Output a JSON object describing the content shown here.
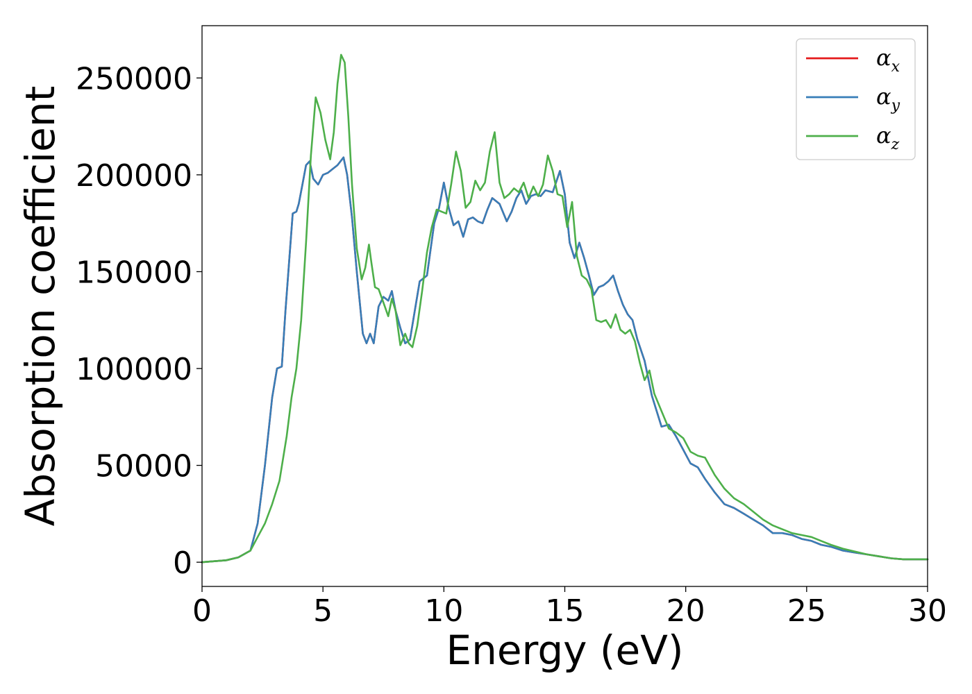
{
  "chart_data": {
    "type": "line",
    "title": "",
    "xlabel": "Energy (eV)",
    "ylabel": "Absorption coefficient",
    "xlim": [
      0,
      30
    ],
    "ylim": [
      -12500,
      277000
    ],
    "xticks": [
      0,
      5,
      10,
      15,
      20,
      25,
      30
    ],
    "xtick_labels": [
      "0",
      "5",
      "10",
      "15",
      "20",
      "25",
      "30"
    ],
    "yticks": [
      0,
      50000,
      100000,
      150000,
      200000,
      250000
    ],
    "ytick_labels": [
      "0",
      "50000",
      "100000",
      "150000",
      "200000",
      "250000"
    ],
    "grid": false,
    "legend_position": "top-right",
    "series": [
      {
        "name": "α_x",
        "symbol": "α",
        "subscript": "x",
        "color": "#e41a1c",
        "x": [
          0,
          1,
          1.5,
          2,
          2.3,
          2.6,
          2.9,
          3.1,
          3.3,
          3.45,
          3.6,
          3.75,
          3.9,
          4.0,
          4.15,
          4.3,
          4.45,
          4.6,
          4.8,
          5.0,
          5.2,
          5.4,
          5.6,
          5.85,
          6.0,
          6.2,
          6.4,
          6.65,
          6.8,
          6.95,
          7.1,
          7.3,
          7.5,
          7.7,
          7.85,
          8.0,
          8.2,
          8.4,
          8.6,
          8.8,
          9.0,
          9.3,
          9.6,
          9.8,
          10.0,
          10.2,
          10.4,
          10.6,
          10.8,
          11.0,
          11.2,
          11.4,
          11.6,
          11.8,
          12.0,
          12.3,
          12.6,
          12.8,
          13.0,
          13.2,
          13.4,
          13.6,
          13.8,
          14.0,
          14.2,
          14.5,
          14.8,
          15.0,
          15.2,
          15.4,
          15.6,
          15.8,
          16.0,
          16.2,
          16.4,
          16.6,
          16.8,
          17.0,
          17.2,
          17.4,
          17.6,
          17.8,
          18.0,
          18.3,
          18.6,
          19.0,
          19.3,
          19.6,
          19.9,
          20.2,
          20.5,
          20.8,
          21.2,
          21.6,
          22.0,
          22.4,
          22.8,
          23.2,
          23.6,
          24.0,
          24.4,
          24.8,
          25.2,
          25.6,
          26.0,
          26.5,
          27.0,
          27.5,
          28.0,
          28.5,
          29.0,
          29.5,
          30.0
        ],
        "y": [
          0,
          1000,
          2500,
          6000,
          20000,
          50000,
          85000,
          100000,
          101000,
          130000,
          155000,
          180000,
          181000,
          185000,
          195000,
          205000,
          207000,
          198000,
          195000,
          200000,
          201000,
          203000,
          205000,
          209000,
          200000,
          178000,
          150000,
          118000,
          113000,
          118000,
          113000,
          132000,
          137000,
          135000,
          140000,
          130000,
          121000,
          113000,
          115000,
          130000,
          145000,
          148000,
          175000,
          183000,
          196000,
          183000,
          174000,
          176000,
          168000,
          177000,
          178000,
          176000,
          175000,
          182000,
          188000,
          185000,
          176000,
          181000,
          188000,
          192000,
          185000,
          189000,
          190000,
          189000,
          192000,
          191000,
          202000,
          190000,
          165000,
          157000,
          165000,
          157000,
          148000,
          138000,
          142000,
          143000,
          145000,
          148000,
          140000,
          133000,
          128000,
          125000,
          115000,
          104000,
          86000,
          70000,
          71000,
          65000,
          58000,
          51000,
          49000,
          43000,
          36000,
          30000,
          28000,
          25000,
          22000,
          19000,
          15000,
          15000,
          14000,
          12000,
          11000,
          9000,
          8000,
          6000,
          5000,
          4000,
          3000,
          2000,
          1500,
          1500,
          1500
        ]
      },
      {
        "name": "α_y",
        "symbol": "α",
        "subscript": "y",
        "color": "#377eb8",
        "x": [
          0,
          1,
          1.5,
          2,
          2.3,
          2.6,
          2.9,
          3.1,
          3.3,
          3.45,
          3.6,
          3.75,
          3.9,
          4.0,
          4.15,
          4.3,
          4.45,
          4.6,
          4.8,
          5.0,
          5.2,
          5.4,
          5.6,
          5.85,
          6.0,
          6.2,
          6.4,
          6.65,
          6.8,
          6.95,
          7.1,
          7.3,
          7.5,
          7.7,
          7.85,
          8.0,
          8.2,
          8.4,
          8.6,
          8.8,
          9.0,
          9.3,
          9.6,
          9.8,
          10.0,
          10.2,
          10.4,
          10.6,
          10.8,
          11.0,
          11.2,
          11.4,
          11.6,
          11.8,
          12.0,
          12.3,
          12.6,
          12.8,
          13.0,
          13.2,
          13.4,
          13.6,
          13.8,
          14.0,
          14.2,
          14.5,
          14.8,
          15.0,
          15.2,
          15.4,
          15.6,
          15.8,
          16.0,
          16.2,
          16.4,
          16.6,
          16.8,
          17.0,
          17.2,
          17.4,
          17.6,
          17.8,
          18.0,
          18.3,
          18.6,
          19.0,
          19.3,
          19.6,
          19.9,
          20.2,
          20.5,
          20.8,
          21.2,
          21.6,
          22.0,
          22.4,
          22.8,
          23.2,
          23.6,
          24.0,
          24.4,
          24.8,
          25.2,
          25.6,
          26.0,
          26.5,
          27.0,
          27.5,
          28.0,
          28.5,
          29.0,
          29.5,
          30.0
        ],
        "y": [
          0,
          1000,
          2500,
          6000,
          20000,
          50000,
          85000,
          100000,
          101000,
          130000,
          155000,
          180000,
          181000,
          185000,
          195000,
          205000,
          207000,
          198000,
          195000,
          200000,
          201000,
          203000,
          205000,
          209000,
          200000,
          178000,
          150000,
          118000,
          113000,
          118000,
          113000,
          132000,
          137000,
          135000,
          140000,
          130000,
          121000,
          113000,
          115000,
          130000,
          145000,
          148000,
          175000,
          183000,
          196000,
          183000,
          174000,
          176000,
          168000,
          177000,
          178000,
          176000,
          175000,
          182000,
          188000,
          185000,
          176000,
          181000,
          188000,
          192000,
          185000,
          189000,
          190000,
          189000,
          192000,
          191000,
          202000,
          190000,
          165000,
          157000,
          165000,
          157000,
          148000,
          138000,
          142000,
          143000,
          145000,
          148000,
          140000,
          133000,
          128000,
          125000,
          115000,
          104000,
          86000,
          70000,
          71000,
          65000,
          58000,
          51000,
          49000,
          43000,
          36000,
          30000,
          28000,
          25000,
          22000,
          19000,
          15000,
          15000,
          14000,
          12000,
          11000,
          9000,
          8000,
          6000,
          5000,
          4000,
          3000,
          2000,
          1500,
          1500,
          1500
        ]
      },
      {
        "name": "α_z",
        "symbol": "α",
        "subscript": "z",
        "color": "#4daf4a",
        "x": [
          0,
          1,
          1.5,
          2,
          2.3,
          2.6,
          2.9,
          3.2,
          3.5,
          3.7,
          3.9,
          4.1,
          4.3,
          4.5,
          4.7,
          4.9,
          5.1,
          5.3,
          5.45,
          5.6,
          5.75,
          5.9,
          6.05,
          6.2,
          6.4,
          6.6,
          6.75,
          6.9,
          7.0,
          7.15,
          7.3,
          7.5,
          7.7,
          7.85,
          8.0,
          8.2,
          8.4,
          8.55,
          8.7,
          8.9,
          9.1,
          9.3,
          9.5,
          9.7,
          9.9,
          10.1,
          10.3,
          10.5,
          10.7,
          10.9,
          11.1,
          11.3,
          11.5,
          11.7,
          11.9,
          12.1,
          12.3,
          12.5,
          12.7,
          12.9,
          13.1,
          13.3,
          13.5,
          13.7,
          13.9,
          14.1,
          14.3,
          14.5,
          14.7,
          14.9,
          15.1,
          15.3,
          15.5,
          15.7,
          15.9,
          16.1,
          16.3,
          16.5,
          16.7,
          16.9,
          17.1,
          17.3,
          17.5,
          17.7,
          17.9,
          18.1,
          18.3,
          18.5,
          18.7,
          19.0,
          19.3,
          19.6,
          19.9,
          20.2,
          20.5,
          20.8,
          21.2,
          21.6,
          22.0,
          22.4,
          22.8,
          23.2,
          23.6,
          24.0,
          24.4,
          24.8,
          25.2,
          25.6,
          26.0,
          26.5,
          27.0,
          27.5,
          28.0,
          28.5,
          29.0,
          29.5,
          30.0
        ],
        "y": [
          0,
          1000,
          2500,
          6000,
          13000,
          20000,
          30000,
          42000,
          65000,
          85000,
          100000,
          125000,
          165000,
          210000,
          240000,
          232000,
          218000,
          208000,
          222000,
          247000,
          262000,
          258000,
          230000,
          195000,
          162000,
          146000,
          152000,
          164000,
          155000,
          142000,
          141000,
          134000,
          127000,
          136000,
          130000,
          112000,
          118000,
          113000,
          111000,
          122000,
          140000,
          160000,
          173000,
          182000,
          181000,
          180000,
          195000,
          212000,
          202000,
          183000,
          186000,
          197000,
          192000,
          196000,
          212000,
          222000,
          196000,
          188000,
          190000,
          193000,
          191000,
          196000,
          188000,
          194000,
          189000,
          195000,
          210000,
          202000,
          190000,
          189000,
          173000,
          186000,
          158000,
          148000,
          146000,
          141000,
          125000,
          124000,
          125000,
          121000,
          128000,
          120000,
          118000,
          120000,
          114000,
          103000,
          94000,
          99000,
          87000,
          78000,
          69000,
          67000,
          64000,
          57000,
          55000,
          54000,
          45000,
          38000,
          33000,
          30000,
          26000,
          22000,
          19000,
          17000,
          15000,
          14000,
          13000,
          11000,
          9000,
          7000,
          5500,
          4000,
          3000,
          2000,
          1500,
          1500,
          1500
        ]
      }
    ]
  }
}
